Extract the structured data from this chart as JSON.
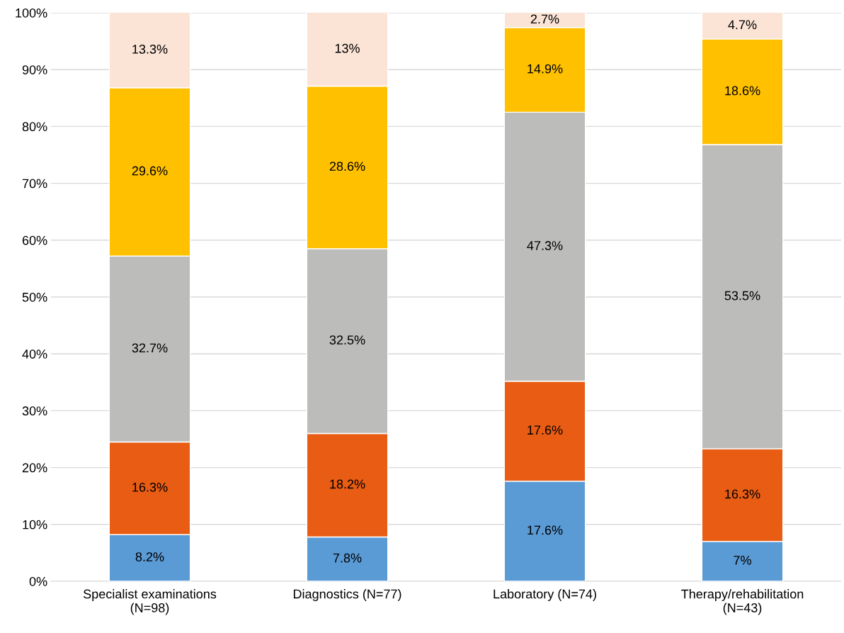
{
  "chart_data": {
    "type": "bar",
    "stacked": true,
    "categories": [
      "Specialist examinations\n(N=98)",
      "Diagnostics (N=77)",
      "Laboratory (N=74)",
      "Therapy/rehabilitation\n(N=43)"
    ],
    "series": [
      {
        "color": "#5b9bd5",
        "values": [
          8.2,
          7.8,
          17.6,
          7
        ],
        "value_labels": [
          "8.2%",
          "7.8%",
          "17.6%",
          "7%"
        ]
      },
      {
        "color": "#e85c13",
        "values": [
          16.3,
          18.2,
          17.6,
          16.3
        ],
        "value_labels": [
          "16.3%",
          "18.2%",
          "17.6%",
          "16.3%"
        ]
      },
      {
        "color": "#bcbcba",
        "values": [
          32.7,
          32.5,
          47.3,
          53.5
        ],
        "value_labels": [
          "32.7%",
          "32.5%",
          "47.3%",
          "53.5%"
        ]
      },
      {
        "color": "#ffc000",
        "values": [
          29.6,
          28.6,
          14.9,
          18.6
        ],
        "value_labels": [
          "29.6%",
          "28.6%",
          "14.9%",
          "18.6%"
        ]
      },
      {
        "color": "#fbe4d6",
        "values": [
          13.3,
          13,
          2.7,
          4.7
        ],
        "value_labels": [
          "13.3%",
          "13%",
          "2.7%",
          "4.7%"
        ]
      }
    ],
    "ylim": [
      0,
      100
    ],
    "yticks": [
      {
        "value": 0,
        "label": "0%"
      },
      {
        "value": 10,
        "label": "10%"
      },
      {
        "value": 20,
        "label": "20%"
      },
      {
        "value": 30,
        "label": "30%"
      },
      {
        "value": 40,
        "label": "40%"
      },
      {
        "value": 50,
        "label": "50%"
      },
      {
        "value": 60,
        "label": "60%"
      },
      {
        "value": 70,
        "label": "70%"
      },
      {
        "value": 80,
        "label": "80%"
      },
      {
        "value": 90,
        "label": "90%"
      },
      {
        "value": 100,
        "label": "100%"
      }
    ],
    "grid": "y"
  }
}
